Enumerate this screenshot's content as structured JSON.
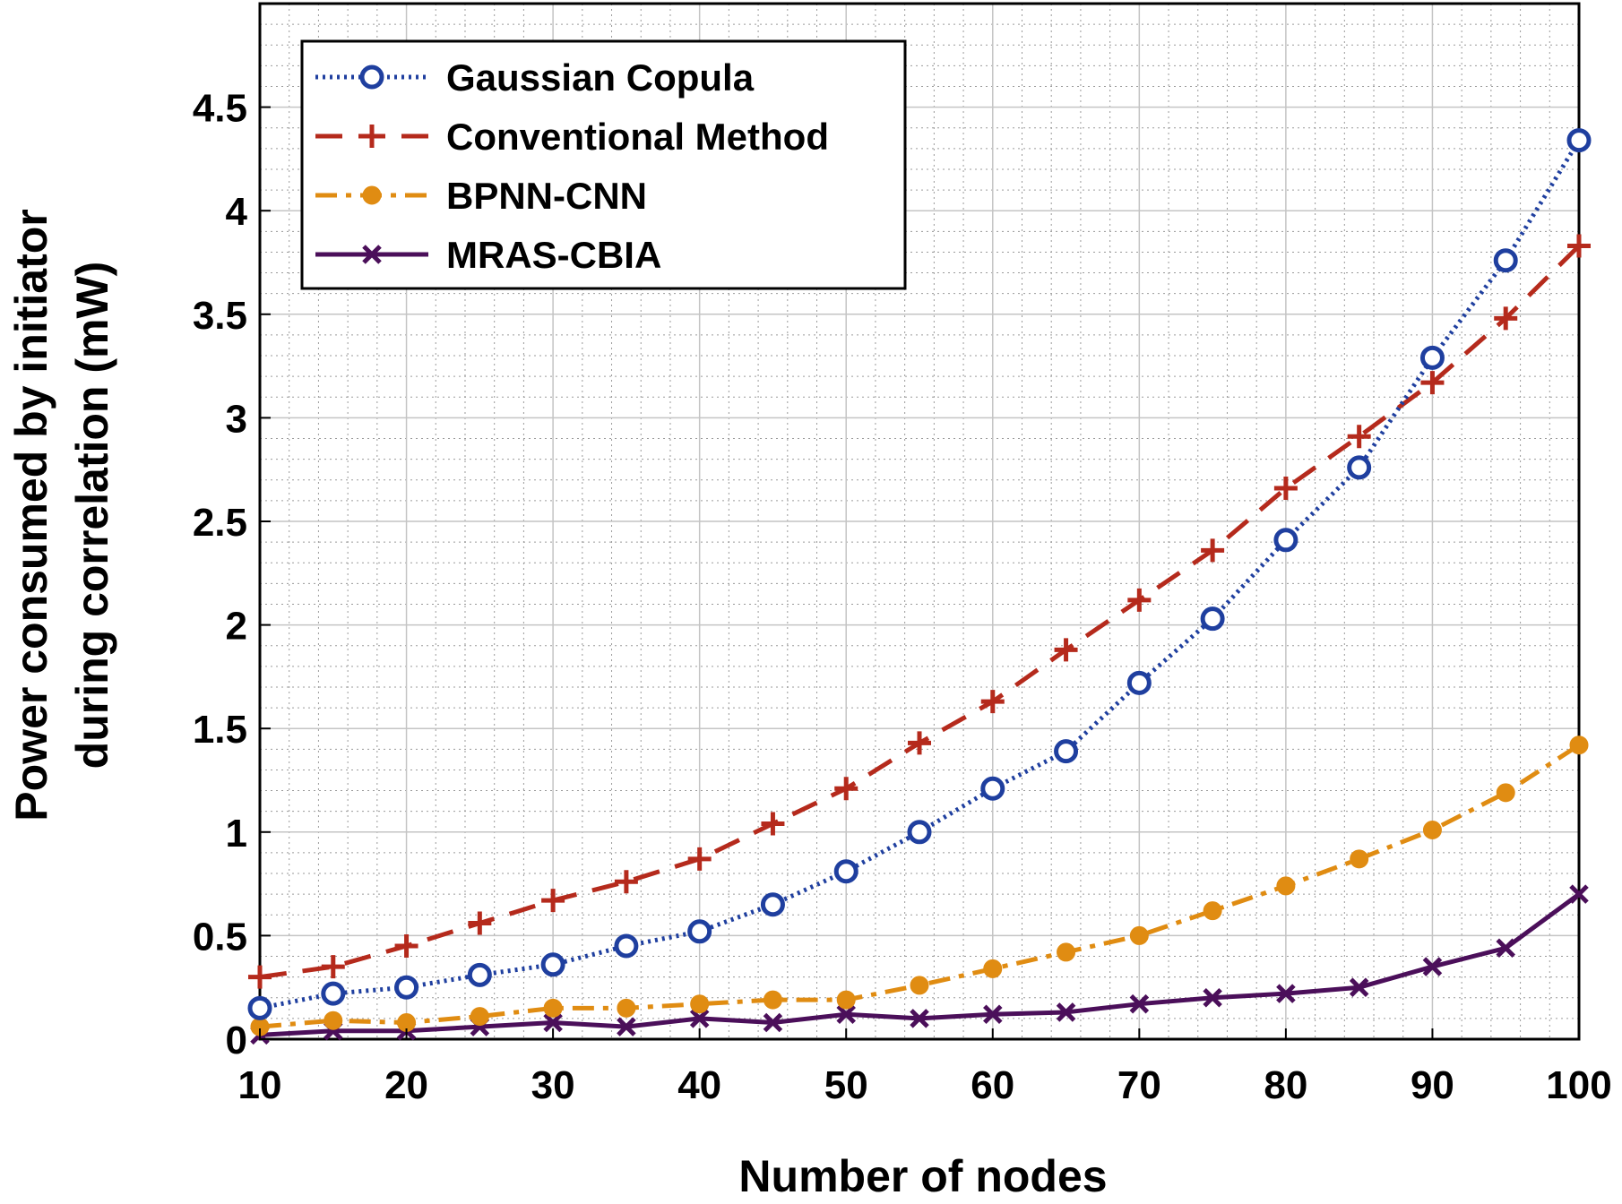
{
  "chart_data": {
    "type": "line",
    "title": "",
    "xlabel": "Number of nodes",
    "ylabel_lines": [
      "Power consumed by initiator",
      "during correlation (mW)"
    ],
    "x": [
      10,
      15,
      20,
      25,
      30,
      35,
      40,
      45,
      50,
      55,
      60,
      65,
      70,
      75,
      80,
      85,
      90,
      95,
      100
    ],
    "xlim": [
      10,
      100
    ],
    "ylim": [
      0,
      5
    ],
    "xticks": [
      10,
      20,
      30,
      40,
      50,
      60,
      70,
      80,
      90,
      100
    ],
    "xtick_labels": [
      "10",
      "20",
      "30",
      "40",
      "50",
      "60",
      "70",
      "80",
      "90",
      "100"
    ],
    "yticks": [
      0,
      0.5,
      1,
      1.5,
      2,
      2.5,
      3,
      3.5,
      4,
      4.5
    ],
    "ytick_labels": [
      "0",
      "0.5",
      "1",
      "1.5",
      "2",
      "2.5",
      "3",
      "3.5",
      "4",
      "4.5"
    ],
    "grid": true,
    "minor_grid": true,
    "legend_position": "top-left",
    "series": [
      {
        "name": "Gaussian Copula",
        "color": "#1f3f9f",
        "line_style": "dotted",
        "marker": "circle",
        "values": [
          0.15,
          0.22,
          0.25,
          0.31,
          0.36,
          0.45,
          0.52,
          0.65,
          0.81,
          1.0,
          1.21,
          1.39,
          1.72,
          2.03,
          2.41,
          2.76,
          3.29,
          3.76,
          4.34
        ]
      },
      {
        "name": "Conventional Method",
        "color": "#b52a1c",
        "line_style": "dashed",
        "marker": "plus",
        "values": [
          0.3,
          0.35,
          0.45,
          0.56,
          0.67,
          0.76,
          0.87,
          1.04,
          1.21,
          1.43,
          1.63,
          1.88,
          2.12,
          2.36,
          2.66,
          2.91,
          3.17,
          3.48,
          3.83
        ]
      },
      {
        "name": "BPNN-CNN",
        "color": "#e08c12",
        "line_style": "dashdot",
        "marker": "dot",
        "values": [
          0.06,
          0.09,
          0.08,
          0.11,
          0.15,
          0.15,
          0.17,
          0.19,
          0.19,
          0.26,
          0.34,
          0.42,
          0.5,
          0.62,
          0.74,
          0.87,
          1.01,
          1.19,
          1.42
        ]
      },
      {
        "name": "MRAS-CBIA",
        "color": "#4b0f5a",
        "line_style": "solid",
        "marker": "x",
        "values": [
          0.02,
          0.04,
          0.04,
          0.06,
          0.08,
          0.06,
          0.1,
          0.08,
          0.12,
          0.1,
          0.12,
          0.13,
          0.17,
          0.2,
          0.22,
          0.25,
          0.35,
          0.44,
          0.7
        ]
      }
    ]
  }
}
